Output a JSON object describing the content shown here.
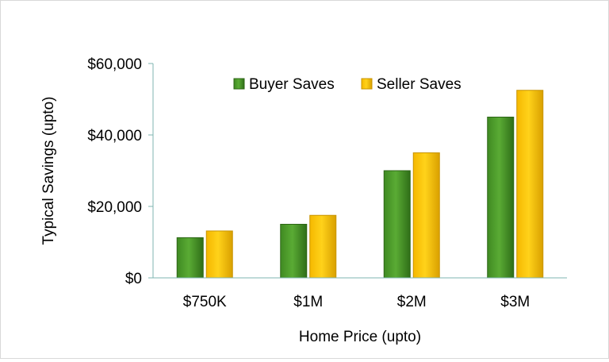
{
  "chart_data": {
    "type": "bar",
    "title": "",
    "xlabel": "Home Price (upto)",
    "ylabel": "Typical Savings (upto)",
    "categories": [
      "$750K",
      "$1M",
      "$2M",
      "$3M"
    ],
    "series": [
      {
        "name": "Buyer Saves",
        "values": [
          11250,
          15000,
          30000,
          45000
        ],
        "color": "#4e9a2c"
      },
      {
        "name": "Seller Saves",
        "values": [
          13125,
          17500,
          35000,
          52500
        ],
        "color": "#ffc000"
      }
    ],
    "ylim": [
      0,
      60000
    ],
    "yticks": [
      0,
      20000,
      40000,
      60000
    ],
    "ytick_labels": [
      "$0",
      "$20,000",
      "$40,000",
      "$60,000"
    ],
    "legend_position": "top-center",
    "grid": false,
    "axis_color": "#7fb5b0"
  }
}
